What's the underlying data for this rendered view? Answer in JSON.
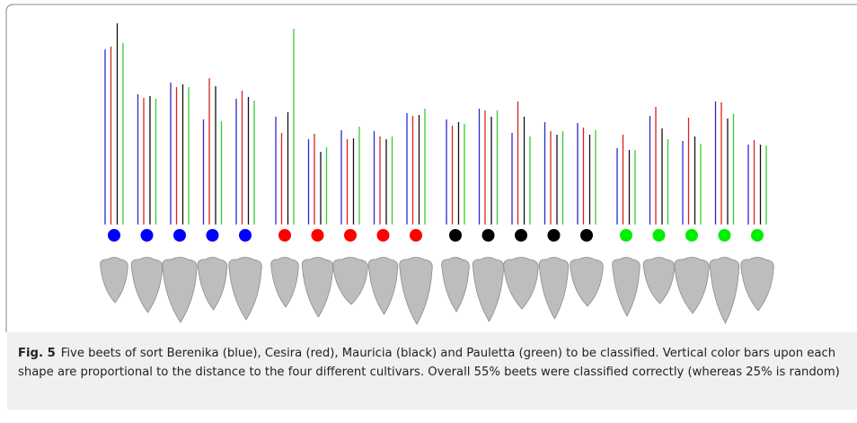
{
  "chart_data": {
    "type": "bar",
    "categories": [
      null,
      null,
      null,
      null,
      null,
      null,
      null,
      null,
      null,
      null,
      null,
      null,
      null,
      null,
      null,
      null,
      null,
      null,
      null,
      null
    ],
    "class_colors": [
      "#0000ff",
      "#0000ff",
      "#0000ff",
      "#0000ff",
      "#0000ff",
      "#ff0000",
      "#ff0000",
      "#ff0000",
      "#ff0000",
      "#ff0000",
      "#000000",
      "#000000",
      "#000000",
      "#000000",
      "#000000",
      "#00ee00",
      "#00ee00",
      "#00ee00",
      "#00ee00",
      "#00ee00"
    ],
    "series": [
      {
        "color": "#2a2ad0",
        "values": [
          195,
          145,
          158,
          117,
          140,
          120,
          95,
          105,
          104,
          124,
          117,
          129,
          102,
          114,
          113,
          85,
          121,
          93,
          137,
          89
        ]
      },
      {
        "color": "#e02020",
        "values": [
          198,
          141,
          153,
          163,
          149,
          102,
          101,
          95,
          98,
          121,
          110,
          127,
          137,
          104,
          108,
          100,
          131,
          119,
          136,
          94
        ]
      },
      {
        "color": "#111111",
        "values": [
          224,
          143,
          156,
          154,
          142,
          125,
          81,
          96,
          95,
          122,
          114,
          120,
          120,
          100,
          100,
          83,
          107,
          98,
          118,
          89
        ]
      },
      {
        "color": "#33cc33",
        "values": [
          202,
          140,
          153,
          115,
          138,
          218,
          86,
          109,
          98,
          129,
          112,
          127,
          98,
          104,
          105,
          83,
          95,
          90,
          123,
          88
        ]
      }
    ],
    "ylim": [
      0,
      230
    ]
  },
  "caption": {
    "label": "Fig. 5",
    "text": "Five beets of sort Berenika (blue), Cesira (red), Mauricia (black) and Pauletta (green) to be classified. Vertical color bars upon each shape are proportional to the distance to the four different cultivars. Overall 55% beets were classified correctly (whereas 25% is random)"
  }
}
